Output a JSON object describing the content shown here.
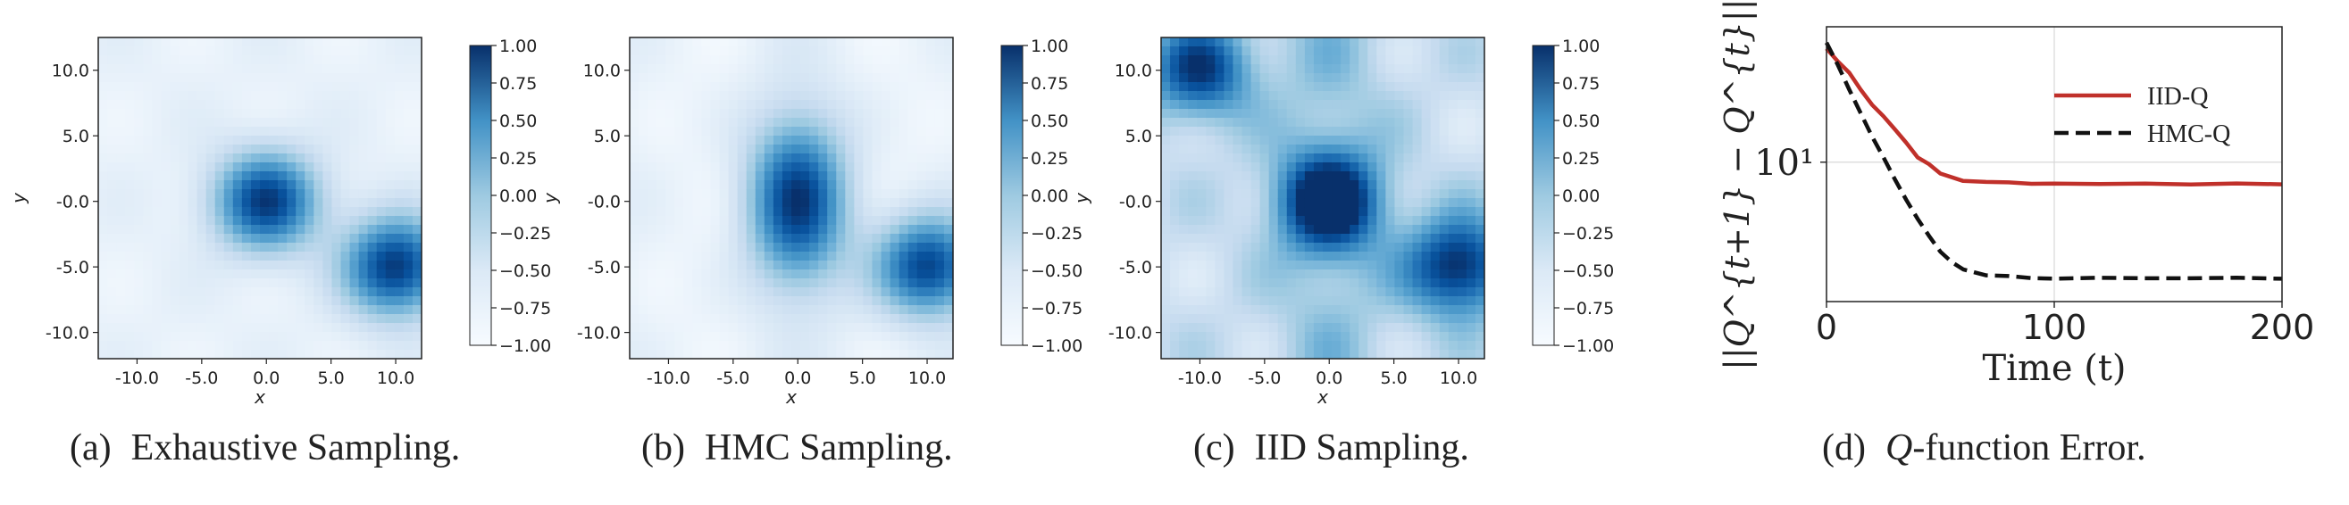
{
  "heatmaps": [
    {
      "caption_label": "(a)",
      "caption_text": "Exhaustive Sampling.",
      "colorbar_ticks": [
        "1.00",
        "0.75",
        "0.50",
        "0.25",
        "0.00",
        "−0.25",
        "−0.50",
        "−0.75",
        "−1.00"
      ],
      "xticks": [
        "-10.0",
        "-5.0",
        "0.0",
        "5.0",
        "10.0"
      ],
      "yticks": [
        "10.0",
        "5.0",
        "-0.0",
        "-5.0",
        "-10.0"
      ],
      "xlabel": "x",
      "ylabel": "y"
    },
    {
      "caption_label": "(b)",
      "caption_text": "HMC Sampling.",
      "colorbar_ticks": [
        "1.00",
        "0.75",
        "0.50",
        "0.25",
        "0.00",
        "−0.25",
        "−0.50",
        "−0.75",
        "−1.00"
      ],
      "xticks": [
        "-10.0",
        "-5.0",
        "0.0",
        "5.0",
        "10.0"
      ],
      "yticks": [
        "10.0",
        "5.0",
        "-0.0",
        "-5.0",
        "-10.0"
      ],
      "xlabel": "x",
      "ylabel": "y"
    },
    {
      "caption_label": "(c)",
      "caption_text": "IID Sampling.",
      "colorbar_ticks": [
        "1.00",
        "0.75",
        "0.50",
        "0.25",
        "0.00",
        "−0.25",
        "−0.50",
        "−0.75",
        "−1.00"
      ],
      "xticks": [
        "-10.0",
        "-5.0",
        "0.0",
        "5.0",
        "10.0"
      ],
      "yticks": [
        "10.0",
        "5.0",
        "-0.0",
        "-5.0",
        "-10.0"
      ],
      "xlabel": "x",
      "ylabel": "y"
    }
  ],
  "line_panel": {
    "caption_label": "(d)",
    "caption_q": "Q",
    "caption_text": "-function Error.",
    "ylabel": "||Q^{t+1} − Q^{t}||_F",
    "xlabel": "Time (t)",
    "ytick_label": "10¹",
    "legend": [
      "IID-Q",
      "HMC-Q"
    ]
  },
  "chart_data": [
    {
      "type": "heatmap",
      "title": "",
      "xlabel": "x",
      "ylabel": "y",
      "xlim": [
        -13,
        12
      ],
      "ylim": [
        -12,
        12.5
      ],
      "clim": [
        -1,
        1
      ],
      "colormap": "Blues",
      "peaks": [
        {
          "x": 0,
          "y": 0,
          "amplitude": 0.9
        },
        {
          "x": 10,
          "y": -5,
          "amplitude": 0.95
        }
      ]
    },
    {
      "type": "heatmap",
      "title": "",
      "xlabel": "x",
      "ylabel": "y",
      "xlim": [
        -13,
        12
      ],
      "ylim": [
        -12,
        12.5
      ],
      "clim": [
        -1,
        1
      ],
      "colormap": "Blues",
      "peaks": [
        {
          "x": 0,
          "y": 0,
          "amplitude": 0.9
        },
        {
          "x": 10,
          "y": -5,
          "amplitude": 0.9
        }
      ]
    },
    {
      "type": "heatmap",
      "title": "",
      "xlabel": "x",
      "ylabel": "y",
      "xlim": [
        -13,
        12
      ],
      "ylim": [
        -12,
        12.5
      ],
      "clim": [
        -1,
        1
      ],
      "colormap": "Blues",
      "peaks": [
        {
          "x": 0,
          "y": 0,
          "amplitude": 0.95
        },
        {
          "x": 10,
          "y": -5,
          "amplitude": 0.85
        },
        {
          "x": -10,
          "y": 10,
          "amplitude": 0.6
        }
      ]
    },
    {
      "type": "line",
      "title": "",
      "xlabel": "Time (t)",
      "ylabel": "||Q^{t+1} − Q^{t}||_F",
      "xlim": [
        0,
        200
      ],
      "yscale": "log",
      "ylim": [
        2.4,
        40
      ],
      "grid": true,
      "legend_position": "top-right",
      "series": [
        {
          "name": "IID-Q",
          "color": "#c0302a",
          "style": "solid",
          "x": [
            0,
            5,
            10,
            15,
            20,
            25,
            30,
            35,
            40,
            45,
            50,
            60,
            70,
            80,
            90,
            100,
            120,
            140,
            160,
            180,
            200
          ],
          "y": [
            32,
            28,
            25,
            21,
            18,
            16,
            14,
            12.2,
            10.5,
            9.8,
            8.9,
            8.3,
            8.15,
            8.1,
            8.05,
            8.05,
            8.0,
            8.0,
            8.0,
            8.0,
            8.0
          ]
        },
        {
          "name": "HMC-Q",
          "color": "#111111",
          "style": "dashed",
          "x": [
            0,
            5,
            10,
            15,
            20,
            25,
            30,
            35,
            40,
            45,
            50,
            55,
            60,
            70,
            80,
            90,
            100,
            120,
            140,
            160,
            180,
            200
          ],
          "y": [
            34,
            27,
            21,
            16.5,
            13,
            10.5,
            8.4,
            6.8,
            5.6,
            4.7,
            4.0,
            3.6,
            3.35,
            3.15,
            3.1,
            3.05,
            3.05,
            3.05,
            3.05,
            3.05,
            3.05,
            3.05
          ]
        }
      ]
    }
  ]
}
